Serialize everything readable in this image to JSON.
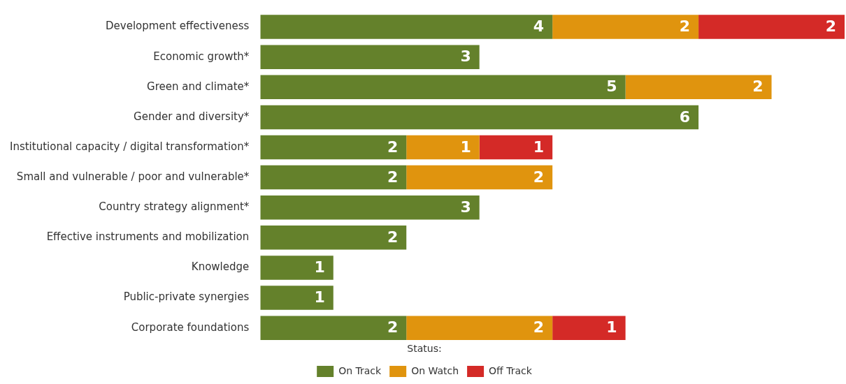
{
  "chart_data": {
    "type": "bar",
    "orientation": "horizontal",
    "stacked": true,
    "data_labels": true,
    "tick_labels": "y",
    "legend": "bottom",
    "legend_title": "Status:",
    "categories": [
      "Development effectiveness",
      "Economic growth*",
      "Green and climate*",
      "Gender and diversity*",
      "Institutional capacity / digital transformation*",
      "Small and vulnerable / poor and vulnerable*",
      "Country strategy alignment*",
      "Effective instruments and mobilization",
      "Knowledge",
      "Public-private synergies",
      "Corporate foundations"
    ],
    "series": [
      {
        "name": "On Track",
        "color": "#64812b",
        "values": [
          4,
          3,
          5,
          6,
          2,
          2,
          3,
          2,
          1,
          1,
          2
        ]
      },
      {
        "name": "On Watch",
        "color": "#e0940e",
        "values": [
          2,
          null,
          2,
          null,
          1,
          2,
          null,
          null,
          null,
          null,
          2
        ]
      },
      {
        "name": "Off Track",
        "color": "#d42a27",
        "values": [
          2,
          null,
          null,
          null,
          1,
          null,
          null,
          null,
          null,
          null,
          1
        ]
      }
    ]
  }
}
